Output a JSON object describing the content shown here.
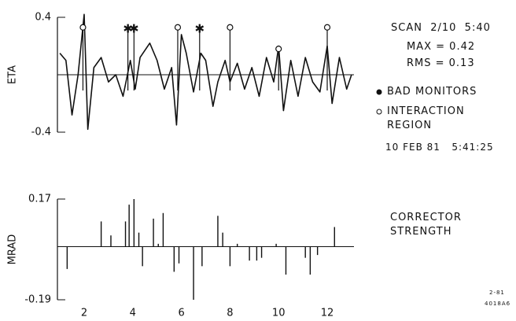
{
  "chart_data": [
    {
      "type": "line",
      "ylabel": "ETA",
      "ylim": [
        -0.4,
        0.4
      ],
      "yticks": [
        -0.4,
        0.4
      ],
      "xlim": [
        0.9,
        13.1
      ],
      "annotations": [
        "SCAN  2/10  5:40",
        "MAX = 0.42",
        "RMS = 0.13",
        "10 FEB 81   5:41:25"
      ],
      "series": [
        {
          "name": "ETA",
          "color": "#111111",
          "x": [
            1.0,
            1.25,
            1.5,
            1.75,
            2.0,
            2.15,
            2.4,
            2.7,
            3.0,
            3.3,
            3.6,
            3.9,
            4.1,
            4.3,
            4.7,
            5.0,
            5.3,
            5.6,
            5.8,
            6.0,
            6.2,
            6.5,
            6.8,
            7.0,
            7.3,
            7.5,
            7.8,
            8.0,
            8.3,
            8.6,
            8.9,
            9.2,
            9.5,
            9.8,
            10.0,
            10.2,
            10.5,
            10.8,
            11.1,
            11.4,
            11.7,
            12.0,
            12.2,
            12.5,
            12.8,
            13.0
          ],
          "values": [
            0.15,
            0.1,
            -0.28,
            0.0,
            0.42,
            -0.38,
            0.05,
            0.12,
            -0.05,
            0.0,
            -0.15,
            0.1,
            -0.1,
            0.12,
            0.22,
            0.1,
            -0.1,
            0.05,
            -0.35,
            0.28,
            0.15,
            -0.12,
            0.15,
            0.1,
            -0.22,
            -0.05,
            0.1,
            -0.05,
            0.08,
            -0.1,
            0.05,
            -0.15,
            0.12,
            -0.05,
            0.2,
            -0.25,
            0.1,
            -0.15,
            0.12,
            -0.05,
            -0.12,
            0.2,
            -0.2,
            0.12,
            -0.1,
            0.0
          ]
        },
        {
          "name": "BAD MONITORS",
          "marker": "star",
          "color": "#111111",
          "x": [
            3.8,
            4.05,
            6.75
          ],
          "values": [
            0.33,
            0.33,
            0.33
          ]
        },
        {
          "name": "INTERACTION REGION",
          "marker": "circle",
          "color": "#111111",
          "x": [
            1.95,
            5.85,
            8.0,
            10.0,
            12.0
          ],
          "values": [
            0.33,
            0.33,
            0.33,
            0.18,
            0.33
          ]
        }
      ]
    },
    {
      "type": "bar",
      "ylabel": "MRAD",
      "ylim": [
        -0.19,
        0.17
      ],
      "yticks": [
        -0.19,
        0.17
      ],
      "xlim": [
        0.9,
        13.1
      ],
      "xticks": [
        2,
        4,
        6,
        8,
        10,
        12
      ],
      "annotations": [
        "CORRECTOR",
        "STRENGTH"
      ],
      "corner": [
        "2-81",
        "4018A6"
      ],
      "color": "#111111",
      "x": [
        1.3,
        2.7,
        3.1,
        3.7,
        3.85,
        4.05,
        4.25,
        4.4,
        4.85,
        5.05,
        5.25,
        5.7,
        5.9,
        6.5,
        6.85,
        7.5,
        7.7,
        8.0,
        8.3,
        8.8,
        9.1,
        9.3,
        9.9,
        10.3,
        11.1,
        11.3,
        11.6,
        12.3
      ],
      "values": [
        -0.08,
        0.09,
        0.04,
        0.09,
        0.15,
        0.17,
        0.05,
        -0.07,
        0.1,
        0.01,
        0.12,
        -0.09,
        -0.06,
        -0.19,
        -0.07,
        0.11,
        0.05,
        -0.07,
        0.01,
        -0.05,
        -0.05,
        -0.04,
        0.01,
        -0.1,
        -0.04,
        -0.1,
        -0.03,
        0.07
      ]
    }
  ]
}
